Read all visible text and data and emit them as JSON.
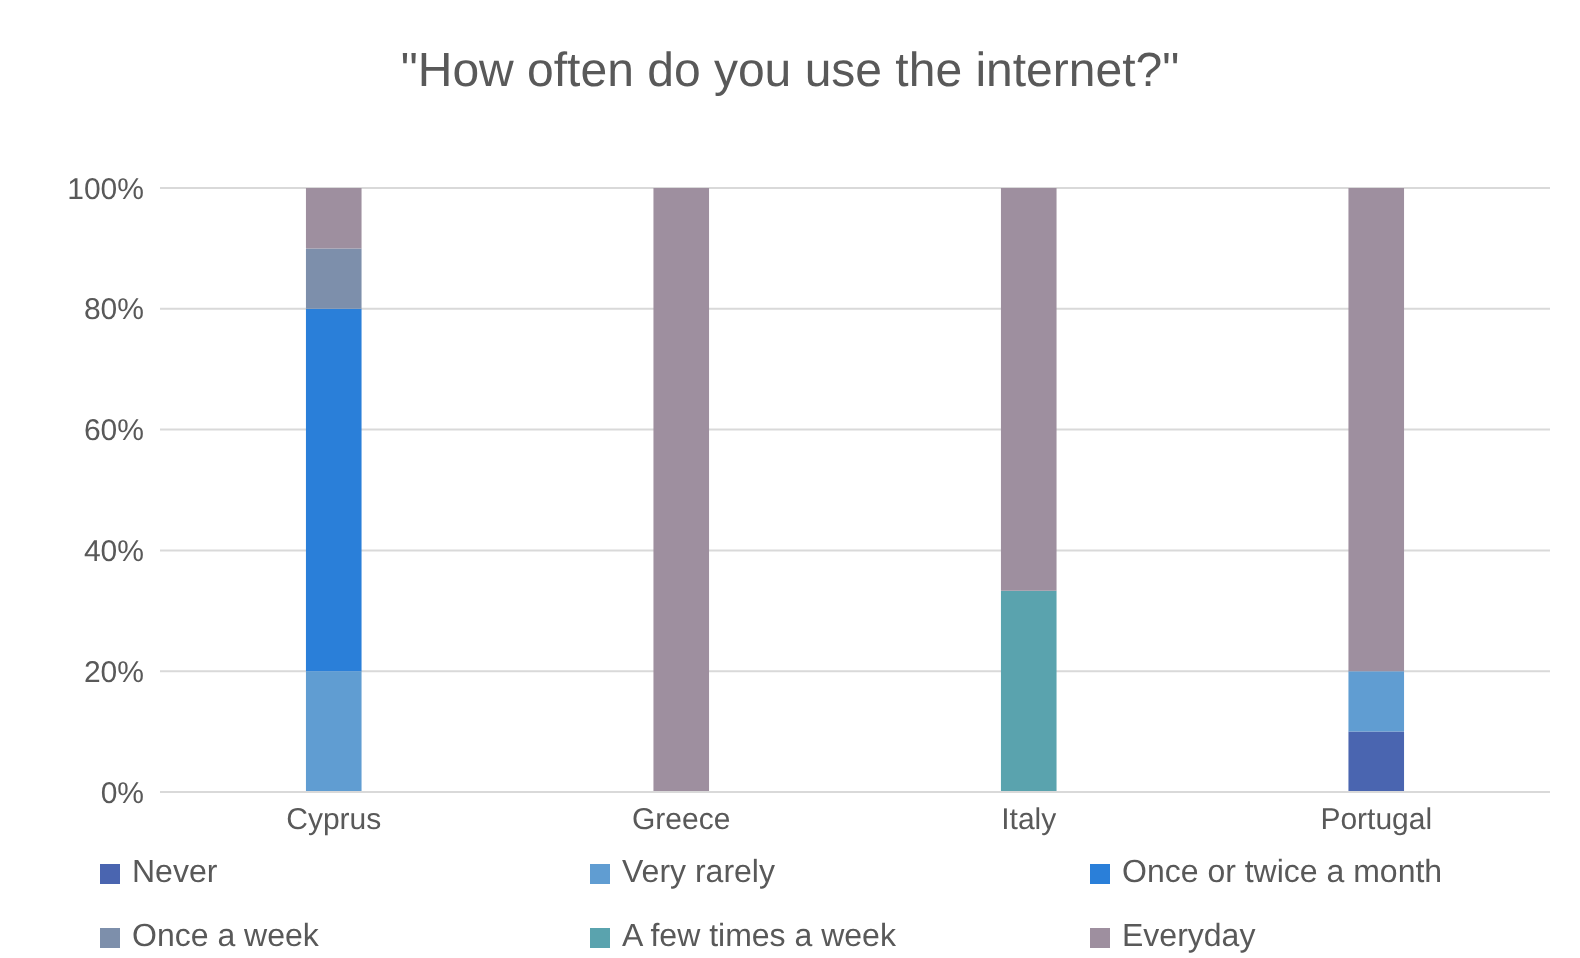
{
  "chart_data": {
    "type": "bar",
    "title": "\"How often do you use the internet?\"",
    "stacked": true,
    "categories": [
      "Cyprus",
      "Greece",
      "Italy",
      "Portugal"
    ],
    "series": [
      {
        "name": "Never",
        "color": "#4a65b0",
        "values": [
          0,
          0,
          0,
          10
        ]
      },
      {
        "name": "Very rarely",
        "color": "#609dd2",
        "values": [
          20,
          0,
          0,
          10
        ]
      },
      {
        "name": "Once or twice a month",
        "color": "#2a7fd9",
        "values": [
          60,
          0,
          0,
          0
        ]
      },
      {
        "name": "Once a week",
        "color": "#7d8fab",
        "values": [
          10,
          0,
          0,
          0
        ]
      },
      {
        "name": "A few times a week",
        "color": "#5aa3ae",
        "values": [
          0,
          0,
          33.3,
          0
        ]
      },
      {
        "name": "Everyday",
        "color": "#9e8f9f",
        "values": [
          10,
          100,
          66.7,
          80
        ]
      }
    ],
    "ylim": [
      0,
      100
    ],
    "yticks": [
      {
        "value": 0,
        "label": "0%"
      },
      {
        "value": 20,
        "label": "20%"
      },
      {
        "value": 40,
        "label": "40%"
      },
      {
        "value": 60,
        "label": "60%"
      },
      {
        "value": 80,
        "label": "80%"
      },
      {
        "value": 100,
        "label": "100%"
      }
    ],
    "grid": "y",
    "legend": "bottom"
  }
}
